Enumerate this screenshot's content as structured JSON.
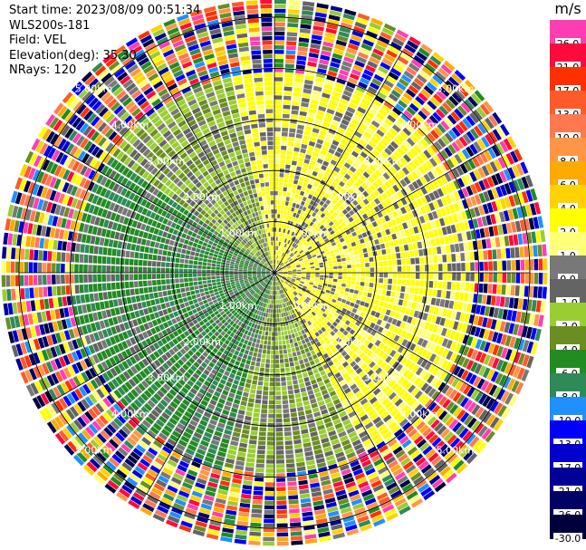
{
  "info": {
    "start_time": "Start time: 2023/08/09 00:51:34",
    "instrument": "WLS200s-181",
    "field": "Field: VEL",
    "elevation": "Elevation(deg): 35.30",
    "nrays": "NRays: 120"
  },
  "chart_data": {
    "type": "heatmap",
    "subtype": "ppi-polar",
    "title": "",
    "field": "VEL",
    "nrays": 120,
    "ring_labels_km": [
      "1.00km",
      "2.00km",
      "3.00km",
      "4.00km",
      "5.00km"
    ],
    "max_range_km": 5.0,
    "colorbar": {
      "unit": "m/s",
      "levels": [
        {
          "label": "26.0",
          "color": "#ff3eb4"
        },
        {
          "label": "21.0",
          "color": "#ff0a3c"
        },
        {
          "label": "17.0",
          "color": "#ff3000"
        },
        {
          "label": "13.0",
          "color": "#ff5a28"
        },
        {
          "label": "10.0",
          "color": "#ff7850"
        },
        {
          "label": "8.0",
          "color": "#ff9646"
        },
        {
          "label": "6.0",
          "color": "#ffaa00"
        },
        {
          "label": "4.0",
          "color": "#ffd200"
        },
        {
          "label": "2.0",
          "color": "#ffff00"
        },
        {
          "label": "1.0",
          "color": "#ffff78"
        },
        {
          "label": "0.0",
          "color": "#787878"
        },
        {
          "label": "-1.0",
          "color": "#646464"
        },
        {
          "label": "-2.0",
          "color": "#9acd32"
        },
        {
          "label": "-4.0",
          "color": "#6b8e23"
        },
        {
          "label": "-6.0",
          "color": "#228b22"
        },
        {
          "label": "-8.0",
          "color": "#2e8b57"
        },
        {
          "label": "-10.0",
          "color": "#1e90ff"
        },
        {
          "label": "-13.0",
          "color": "#0000ff"
        },
        {
          "label": "-17.0",
          "color": "#0000cd"
        },
        {
          "label": "-21.0",
          "color": "#000096"
        },
        {
          "label": "-26.0",
          "color": "#000064"
        },
        {
          "label": "-30.0",
          "color": "#00003c"
        }
      ]
    }
  }
}
